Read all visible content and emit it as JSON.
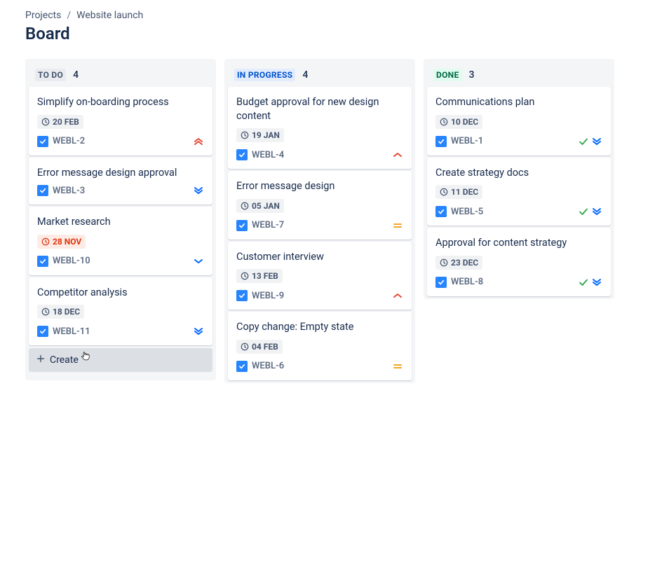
{
  "breadcrumb": {
    "root": "Projects",
    "separator": "/",
    "current": "Website launch"
  },
  "page_title": "Board",
  "columns": [
    {
      "status": {
        "label": "TO DO",
        "text_color": "#44546f",
        "bg_color": "#e9ebee"
      },
      "count": "4",
      "has_create": true,
      "create_label": "Create",
      "cards": [
        {
          "title": "Simplify on-boarding process",
          "date": "20 FEB",
          "overdue": false,
          "key": "WEBL-2",
          "priority": "highest",
          "done": false
        },
        {
          "title": "Error message design approval",
          "date": null,
          "overdue": false,
          "key": "WEBL-3",
          "priority": "lowest",
          "done": false
        },
        {
          "title": "Market research",
          "date": "28 NOV",
          "overdue": true,
          "key": "WEBL-10",
          "priority": "low",
          "done": false
        },
        {
          "title": "Competitor analysis",
          "date": "18 DEC",
          "overdue": false,
          "key": "WEBL-11",
          "priority": "lowest",
          "done": false
        }
      ]
    },
    {
      "status": {
        "label": "IN PROGRESS",
        "text_color": "#0052cc",
        "bg_color": "#e2ecfd"
      },
      "count": "4",
      "has_create": false,
      "cards": [
        {
          "title": "Budget approval for new design content",
          "date": "19 JAN",
          "overdue": false,
          "key": "WEBL-4",
          "priority": "high",
          "done": false
        },
        {
          "title": "Error message design",
          "date": "05 JAN",
          "overdue": false,
          "key": "WEBL-7",
          "priority": "medium",
          "done": false
        },
        {
          "title": "Customer interview",
          "date": "13 FEB",
          "overdue": false,
          "key": "WEBL-9",
          "priority": "high",
          "done": false
        },
        {
          "title": "Copy change: Empty state",
          "date": "04 FEB",
          "overdue": false,
          "key": "WEBL-6",
          "priority": "medium",
          "done": false
        }
      ]
    },
    {
      "status": {
        "label": "DONE",
        "text_color": "#006644",
        "bg_color": "#dffcef"
      },
      "count": "3",
      "has_create": false,
      "cards": [
        {
          "title": "Communications plan",
          "date": "10 DEC",
          "overdue": false,
          "key": "WEBL-1",
          "priority": "lowest",
          "done": true
        },
        {
          "title": "Create strategy docs",
          "date": "11 DEC",
          "overdue": false,
          "key": "WEBL-5",
          "priority": "lowest",
          "done": true
        },
        {
          "title": "Approval for content strategy",
          "date": "23 DEC",
          "overdue": false,
          "key": "WEBL-8",
          "priority": "lowest",
          "done": true
        }
      ]
    }
  ],
  "icons": {
    "priority_colors": {
      "highest": "#e34935",
      "high": "#e34935",
      "medium": "#f5a623",
      "low": "#0065ff",
      "lowest": "#0065ff"
    },
    "done_check_color": "#2ba747"
  }
}
